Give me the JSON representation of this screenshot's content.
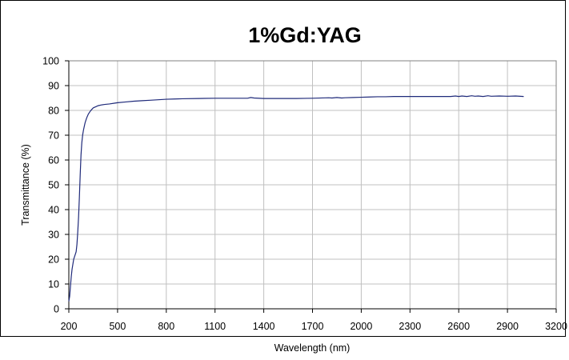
{
  "chart_data": {
    "type": "line",
    "title": "1%Gd:YAG",
    "xlabel": "Wavelength (nm)",
    "ylabel": "Transmittance (%)",
    "xlim": [
      200,
      3200
    ],
    "ylim": [
      0,
      100
    ],
    "xticks": [
      200,
      500,
      800,
      1100,
      1400,
      1700,
      2000,
      2300,
      2600,
      2900,
      3200
    ],
    "yticks": [
      0,
      10,
      20,
      30,
      40,
      50,
      60,
      70,
      80,
      90,
      100
    ],
    "grid": true,
    "legend": "none",
    "line_color": "#1f2a7a",
    "series": [
      {
        "x": [
          200,
          205,
          210,
          215,
          220,
          225,
          230,
          235,
          240,
          245,
          250,
          255,
          260,
          265,
          270,
          275,
          280,
          285,
          290,
          295,
          300,
          310,
          320,
          330,
          340,
          350,
          360,
          370,
          380,
          400,
          420,
          450,
          480,
          500,
          550,
          600,
          650,
          700,
          750,
          800,
          850,
          900,
          1000,
          1100,
          1200,
          1300,
          1320,
          1340,
          1400,
          1500,
          1600,
          1700,
          1800,
          1820,
          1850,
          1880,
          1900,
          1950,
          2000,
          2050,
          2100,
          2150,
          2200,
          2300,
          2400,
          2500,
          2550,
          2580,
          2600,
          2620,
          2650,
          2680,
          2700,
          2720,
          2750,
          2780,
          2800,
          2850,
          2900,
          2950,
          3000
        ],
        "y": [
          3,
          5,
          9,
          13,
          16,
          18,
          20,
          21,
          22,
          23,
          26,
          31,
          37,
          45,
          54,
          62,
          67,
          70,
          72,
          73.5,
          75,
          77,
          78.5,
          79.5,
          80.3,
          81,
          81.3,
          81.6,
          81.9,
          82.2,
          82.4,
          82.6,
          82.9,
          83.1,
          83.4,
          83.7,
          83.9,
          84.1,
          84.3,
          84.5,
          84.6,
          84.7,
          84.8,
          84.9,
          84.9,
          84.9,
          85.2,
          85,
          84.8,
          84.8,
          84.8,
          84.9,
          85.1,
          85.0,
          85.2,
          85.0,
          85.1,
          85.2,
          85.3,
          85.4,
          85.5,
          85.5,
          85.6,
          85.6,
          85.6,
          85.6,
          85.6,
          85.8,
          85.6,
          85.8,
          85.6,
          85.9,
          85.7,
          85.8,
          85.6,
          85.9,
          85.7,
          85.8,
          85.7,
          85.8,
          85.6
        ]
      }
    ]
  }
}
